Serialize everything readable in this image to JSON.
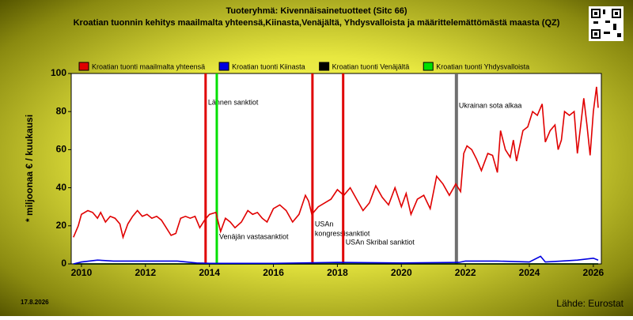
{
  "chart_data": {
    "type": "line",
    "title": "Tuoteryhmä: Kivennäisainetuotteet (Sitc 66)",
    "subtitle": "Kroatian tuonnin kehitys maailmalta yhteensä,Kiinasta,Venäjältä, Yhdysvalloista ja määrittelemättömästä maasta (QZ)",
    "y_label": "* miljoonaa € / kuukausi",
    "date": "17.8.2026",
    "source": "Lähde: Eurostat",
    "xlim": [
      2009.68,
      2026.25
    ],
    "xticks": [
      2010,
      2012,
      2014,
      2016,
      2018,
      2020,
      2022,
      2024,
      2026
    ],
    "ylim": [
      0,
      100
    ],
    "yticks": [
      0,
      20,
      40,
      60,
      80,
      100
    ],
    "legend": "top",
    "series": [
      {
        "name": "Kroatian tuonti maailmalta yhteensä",
        "color": "#e00000",
        "x": [
          2009.75,
          2009.9,
          2010.0,
          2010.2,
          2010.35,
          2010.5,
          2010.6,
          2010.75,
          2010.9,
          2011.05,
          2011.2,
          2011.3,
          2011.45,
          2011.6,
          2011.75,
          2011.9,
          2012.05,
          2012.2,
          2012.35,
          2012.5,
          2012.65,
          2012.8,
          2012.95,
          2013.1,
          2013.25,
          2013.4,
          2013.55,
          2013.7,
          2013.85,
          2014.0,
          2014.2,
          2014.35,
          2014.5,
          2014.65,
          2014.8,
          2015.0,
          2015.2,
          2015.35,
          2015.5,
          2015.65,
          2015.8,
          2016.0,
          2016.2,
          2016.4,
          2016.6,
          2016.8,
          2017.0,
          2017.1,
          2017.2,
          2017.4,
          2017.6,
          2017.8,
          2018.0,
          2018.2,
          2018.4,
          2018.6,
          2018.8,
          2019.0,
          2019.2,
          2019.4,
          2019.6,
          2019.8,
          2020.0,
          2020.15,
          2020.3,
          2020.5,
          2020.7,
          2020.9,
          2021.1,
          2021.3,
          2021.5,
          2021.7,
          2021.85,
          2021.95,
          2022.05,
          2022.2,
          2022.35,
          2022.5,
          2022.7,
          2022.85,
          2023.0,
          2023.1,
          2023.25,
          2023.4,
          2023.5,
          2023.6,
          2023.8,
          2023.95,
          2024.1,
          2024.25,
          2024.4,
          2024.5,
          2024.65,
          2024.8,
          2024.9,
          2025.0,
          2025.1,
          2025.25,
          2025.4,
          2025.5,
          2025.6,
          2025.7,
          2025.8,
          2025.9,
          2026.0,
          2026.1,
          2026.15
        ],
        "values": [
          14,
          20,
          26,
          28,
          27,
          24,
          27,
          22,
          25,
          24,
          21,
          14,
          21,
          25,
          28,
          25,
          26,
          24,
          25,
          23,
          19,
          15,
          16,
          24,
          25,
          24,
          25,
          19,
          23,
          26,
          27,
          17,
          24,
          22,
          19,
          22,
          28,
          26,
          27,
          24,
          22,
          29,
          31,
          28,
          22,
          26,
          36,
          33,
          26,
          30,
          32,
          34,
          39,
          36,
          40,
          34,
          28,
          32,
          41,
          35,
          31,
          40,
          30,
          37,
          26,
          34,
          36,
          29,
          46,
          42,
          36,
          42,
          38,
          58,
          62,
          60,
          55,
          49,
          58,
          57,
          48,
          70,
          60,
          56,
          65,
          54,
          70,
          72,
          80,
          78,
          84,
          64,
          70,
          73,
          60,
          65,
          80,
          78,
          80,
          58,
          72,
          87,
          73,
          57,
          80,
          93,
          82
        ]
      },
      {
        "name": "Kroatian tuonti Kiinasta",
        "color": "#0000e0",
        "x": [
          2009.75,
          2010.0,
          2010.5,
          2011.0,
          2012.0,
          2013.0,
          2013.6,
          2014.0,
          2016.0,
          2018.0,
          2020.0,
          2021.8,
          2022.0,
          2023.0,
          2024.0,
          2024.35,
          2024.5,
          2025.0,
          2025.5,
          2026.0,
          2026.15
        ],
        "values": [
          0,
          1,
          2,
          1.5,
          1.5,
          1.5,
          0.5,
          0.3,
          0.3,
          0.8,
          0.5,
          0.8,
          1.5,
          1.5,
          1,
          4,
          1,
          1.5,
          2,
          3,
          2
        ]
      },
      {
        "name": "Kroatian tuonti Venäjältä",
        "color": "#000000",
        "x": [
          2009.75,
          2014.0,
          2018.0,
          2022.0,
          2026.15
        ],
        "values": [
          0,
          0,
          0,
          0,
          0
        ]
      },
      {
        "name": "Kroatian tuonti Yhdysvalloista",
        "color": "#00e000",
        "x": [
          2009.75,
          2014.0,
          2018.0,
          2022.0,
          2026.15
        ],
        "values": [
          0,
          0,
          0,
          0,
          0
        ]
      }
    ],
    "events": [
      {
        "x": 2013.88,
        "color": "#e00000",
        "labels": [
          "Lännen sanktiot"
        ]
      },
      {
        "x": 2014.23,
        "color": "#00e000",
        "labels": [
          "Venäjän vastasanktiot"
        ]
      },
      {
        "x": 2017.22,
        "color": "#e00000",
        "labels": [
          "USAn",
          "kongressisanktiot"
        ]
      },
      {
        "x": 2018.18,
        "color": "#e00000",
        "labels": [
          "USAn Skribal sanktiot"
        ]
      },
      {
        "x": 2021.72,
        "color": "#707070",
        "labels": [
          "Ukrainan sota alkaa"
        ]
      }
    ]
  }
}
